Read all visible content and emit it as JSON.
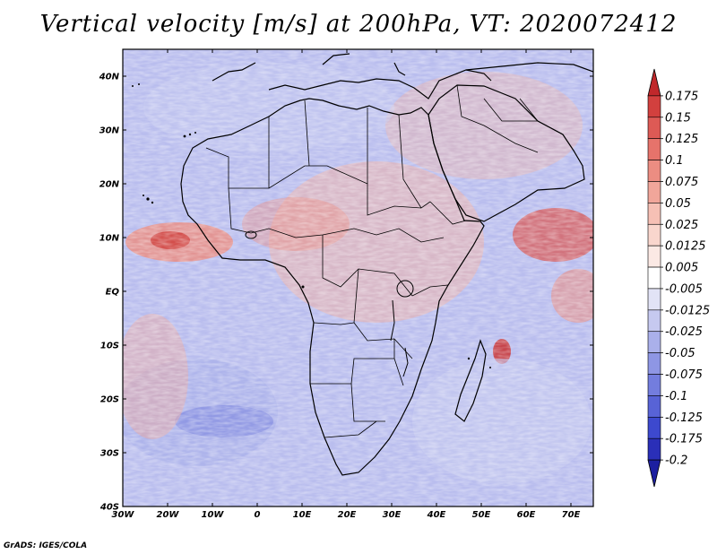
{
  "title": "Vertical velocity [m/s] at 200hPa, VT: 2020072412",
  "credit": "GrADS: IGES/COLA",
  "map": {
    "region": "Africa",
    "lat_range": [
      -40,
      45
    ],
    "lon_range": [
      -30,
      75
    ],
    "lat_ticks": [
      "40N",
      "30N",
      "20N",
      "10N",
      "EQ",
      "10S",
      "20S",
      "30S",
      "40S"
    ],
    "lat_values": [
      40,
      30,
      20,
      10,
      0,
      -10,
      -20,
      -30,
      -40
    ],
    "lon_ticks": [
      "30W",
      "20W",
      "10W",
      "0",
      "10E",
      "20E",
      "30E",
      "40E",
      "50E",
      "60E",
      "70E"
    ],
    "lon_values": [
      -30,
      -20,
      -10,
      0,
      10,
      20,
      30,
      40,
      50,
      60,
      70
    ]
  },
  "colorbar": {
    "labels": [
      "0.175",
      "0.15",
      "0.125",
      "0.1",
      "0.075",
      "0.05",
      "0.025",
      "0.0125",
      "0.005",
      "-0.005",
      "-0.0125",
      "-0.025",
      "-0.05",
      "-0.075",
      "-0.1",
      "-0.125",
      "-0.175",
      "-0.2"
    ],
    "colors": [
      "#c0282b",
      "#d2403e",
      "#dd5a55",
      "#e6736b",
      "#ec8d82",
      "#f1a69a",
      "#f6c0b5",
      "#f9d6cd",
      "#fbe9e4",
      "#ffffff",
      "#e2e3f6",
      "#c6c9f0",
      "#aab0ea",
      "#8e96e4",
      "#737dde",
      "#5863d6",
      "#3d49ce",
      "#2a2fb8",
      "#1c1fa0"
    ]
  }
}
